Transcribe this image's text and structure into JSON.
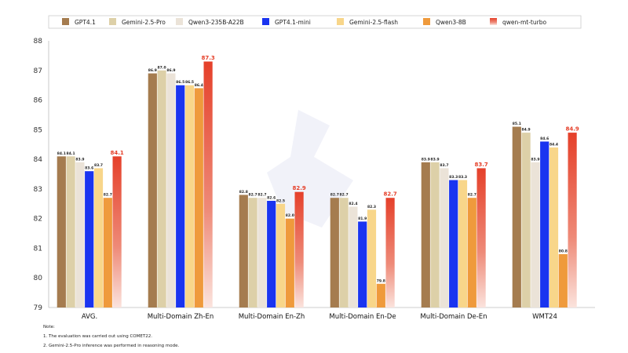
{
  "chart_data": {
    "type": "bar",
    "categories": [
      "AVG.",
      "Multi-Domain Zh-En",
      "Multi-Domain En-Zh",
      "Multi-Domain En-De",
      "Multi-Domain De-En",
      "WMT24"
    ],
    "series": [
      {
        "name": "GPT4.1",
        "color": "#a57c4f",
        "values": [
          84.1,
          86.9,
          82.8,
          82.7,
          83.9,
          85.1
        ]
      },
      {
        "name": "Gemini-2.5-Pro",
        "color": "#ddd0a8",
        "values": [
          84.1,
          87.0,
          82.7,
          82.7,
          83.9,
          84.9
        ]
      },
      {
        "name": "Qwen3-235B-A22B",
        "color": "#ebe3d8",
        "values": [
          83.9,
          86.9,
          82.7,
          82.4,
          83.7,
          83.9
        ]
      },
      {
        "name": "GPT4.1-mini",
        "color": "#1a34f0",
        "values": [
          83.6,
          86.5,
          82.6,
          81.9,
          83.3,
          84.6
        ]
      },
      {
        "name": "Gemini-2.5-flash",
        "color": "#f8d68a",
        "values": [
          83.7,
          86.5,
          82.5,
          82.3,
          83.3,
          84.4
        ]
      },
      {
        "name": "Qwen3-8B",
        "color": "#ef9a3c",
        "values": [
          82.7,
          86.4,
          82.0,
          79.8,
          82.7,
          80.8
        ]
      },
      {
        "name": "qwen-mt-turbo",
        "color": "#e5402a",
        "values": [
          84.1,
          87.3,
          82.9,
          82.7,
          83.7,
          84.9
        ],
        "highlight": true
      }
    ],
    "ylim": [
      79,
      88
    ],
    "yticks": [
      79,
      80,
      81,
      82,
      83,
      84,
      85,
      86,
      87,
      88
    ],
    "xlabel": "",
    "ylabel": "",
    "legend": "top",
    "grid": false
  },
  "notes": {
    "title": "Note:",
    "lines": [
      "1. The evaluation was carried out using COMET22.",
      "2. Gemini-2.5-Pro inference was performed in reasoning mode."
    ]
  }
}
